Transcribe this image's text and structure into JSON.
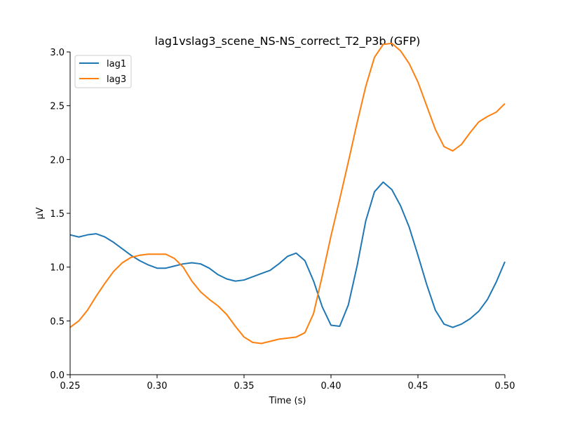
{
  "chart_data": {
    "type": "line",
    "title": "lag1vslag3_scene_NS-NS_correct_T2_P3b (GFP)",
    "xlabel": "Time (s)",
    "ylabel": "µV",
    "xlim": [
      0.25,
      0.5
    ],
    "ylim": [
      0.0,
      3.0
    ],
    "xticks": [
      "0.25",
      "0.30",
      "0.35",
      "0.40",
      "0.45",
      "0.50"
    ],
    "yticks": [
      "0.0",
      "0.5",
      "1.0",
      "1.5",
      "2.0",
      "2.5",
      "3.0"
    ],
    "grid": false,
    "legend_position": "top-left",
    "x": [
      0.25,
      0.255,
      0.26,
      0.265,
      0.27,
      0.275,
      0.28,
      0.285,
      0.29,
      0.295,
      0.3,
      0.305,
      0.31,
      0.315,
      0.32,
      0.325,
      0.33,
      0.335,
      0.34,
      0.345,
      0.35,
      0.355,
      0.36,
      0.365,
      0.37,
      0.375,
      0.38,
      0.385,
      0.39,
      0.395,
      0.4,
      0.405,
      0.41,
      0.415,
      0.42,
      0.425,
      0.43,
      0.435,
      0.44,
      0.445,
      0.45,
      0.455,
      0.46,
      0.465,
      0.47,
      0.475,
      0.48,
      0.485,
      0.49,
      0.495,
      0.5
    ],
    "series": [
      {
        "name": "lag1",
        "color": "#1f77b4",
        "values": [
          1.3,
          1.28,
          1.3,
          1.31,
          1.28,
          1.23,
          1.17,
          1.11,
          1.06,
          1.02,
          0.99,
          0.99,
          1.01,
          1.03,
          1.04,
          1.03,
          0.99,
          0.93,
          0.89,
          0.87,
          0.88,
          0.91,
          0.94,
          0.97,
          1.03,
          1.1,
          1.13,
          1.06,
          0.87,
          0.63,
          0.46,
          0.45,
          0.65,
          1.01,
          1.43,
          1.7,
          1.79,
          1.72,
          1.57,
          1.37,
          1.11,
          0.84,
          0.6,
          0.47,
          0.44,
          0.47,
          0.52,
          0.59,
          0.7,
          0.86,
          1.05
        ]
      },
      {
        "name": "lag3",
        "color": "#ff7f0e",
        "values": [
          0.44,
          0.5,
          0.6,
          0.73,
          0.85,
          0.96,
          1.04,
          1.09,
          1.11,
          1.12,
          1.12,
          1.12,
          1.08,
          1.0,
          0.87,
          0.77,
          0.7,
          0.64,
          0.56,
          0.45,
          0.35,
          0.3,
          0.29,
          0.31,
          0.33,
          0.34,
          0.35,
          0.39,
          0.57,
          0.92,
          1.29,
          1.63,
          1.98,
          2.34,
          2.68,
          2.95,
          3.07,
          3.08,
          3.01,
          2.89,
          2.72,
          2.5,
          2.28,
          2.12,
          2.08,
          2.14,
          2.25,
          2.35,
          2.4,
          2.44,
          2.52
        ]
      }
    ]
  }
}
